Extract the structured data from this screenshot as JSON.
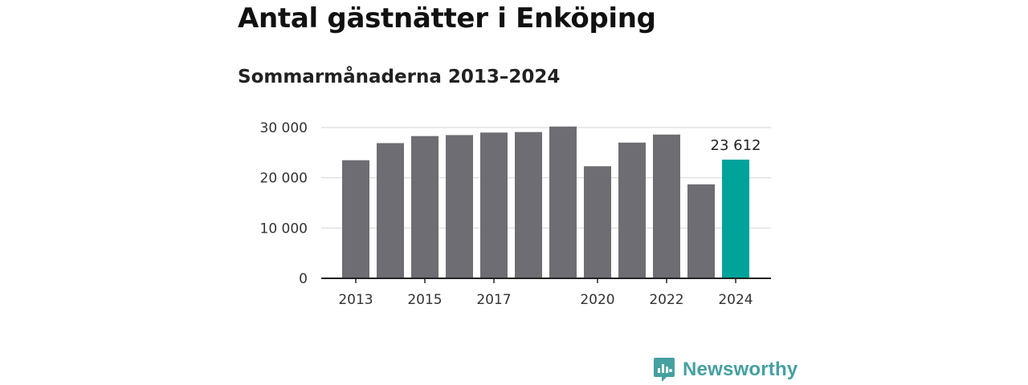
{
  "header": {
    "title": "Antal gästnätter i Enköping",
    "subtitle": "Sommarmånaderna 2013–2024"
  },
  "brand": {
    "name": "Newsworthy",
    "color": "#45a0a0"
  },
  "colors": {
    "bar": "#6e6d73",
    "highlight": "#00a39a",
    "grid": "#d9d9d9",
    "axis": "#222222"
  },
  "chart_data": {
    "type": "bar",
    "categories": [
      "2013",
      "2014",
      "2015",
      "2016",
      "2017",
      "2018",
      "2019",
      "2020",
      "2021",
      "2022",
      "2023",
      "2024"
    ],
    "values": [
      23500,
      26900,
      28300,
      28500,
      29000,
      29100,
      30200,
      22300,
      27000,
      28600,
      18700,
      23612
    ],
    "highlight_index": 11,
    "data_labels": [
      {
        "index": 11,
        "text": "23 612"
      }
    ],
    "x_tick_labels": [
      "2013",
      "2015",
      "2017",
      "2020",
      "2022",
      "2024"
    ],
    "y_ticks": [
      {
        "value": 0,
        "label": "0"
      },
      {
        "value": 10000,
        "label": "10 000"
      },
      {
        "value": 20000,
        "label": "20 000"
      },
      {
        "value": 30000,
        "label": "30 000"
      }
    ],
    "ylim": [
      0,
      30000
    ],
    "grid": true
  }
}
